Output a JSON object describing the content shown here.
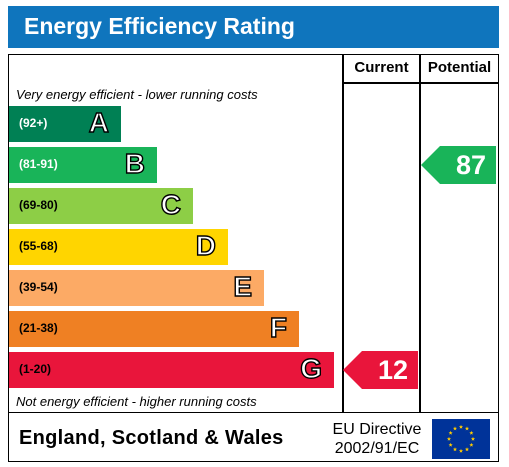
{
  "title": "Energy Efficiency Rating",
  "columns": {
    "current": "Current",
    "potential": "Potential"
  },
  "top_note": "Very energy efficient - lower running costs",
  "bottom_note": "Not energy efficient - higher running costs",
  "bands": [
    {
      "letter": "A",
      "range": "(92+)",
      "color": "#008054",
      "text_color": "#ffffff"
    },
    {
      "letter": "B",
      "range": "(81-91)",
      "color": "#19b459",
      "text_color": "#ffffff"
    },
    {
      "letter": "C",
      "range": "(69-80)",
      "color": "#8dce46",
      "text_color": "#000000"
    },
    {
      "letter": "D",
      "range": "(55-68)",
      "color": "#ffd500",
      "text_color": "#000000"
    },
    {
      "letter": "E",
      "range": "(39-54)",
      "color": "#fcaa65",
      "text_color": "#000000"
    },
    {
      "letter": "F",
      "range": "(21-38)",
      "color": "#ef8023",
      "text_color": "#000000"
    },
    {
      "letter": "G",
      "range": "(1-20)",
      "color": "#e9153b",
      "text_color": "#000000"
    }
  ],
  "current": {
    "value": "12",
    "band": "G",
    "color": "#e9153b"
  },
  "potential": {
    "value": "87",
    "band": "B",
    "color": "#19b459"
  },
  "footer": {
    "region": "England, Scotland & Wales",
    "directive": "EU Directive 2002/91/EC",
    "flag_color": "#003399",
    "star_color": "#ffcc00"
  }
}
